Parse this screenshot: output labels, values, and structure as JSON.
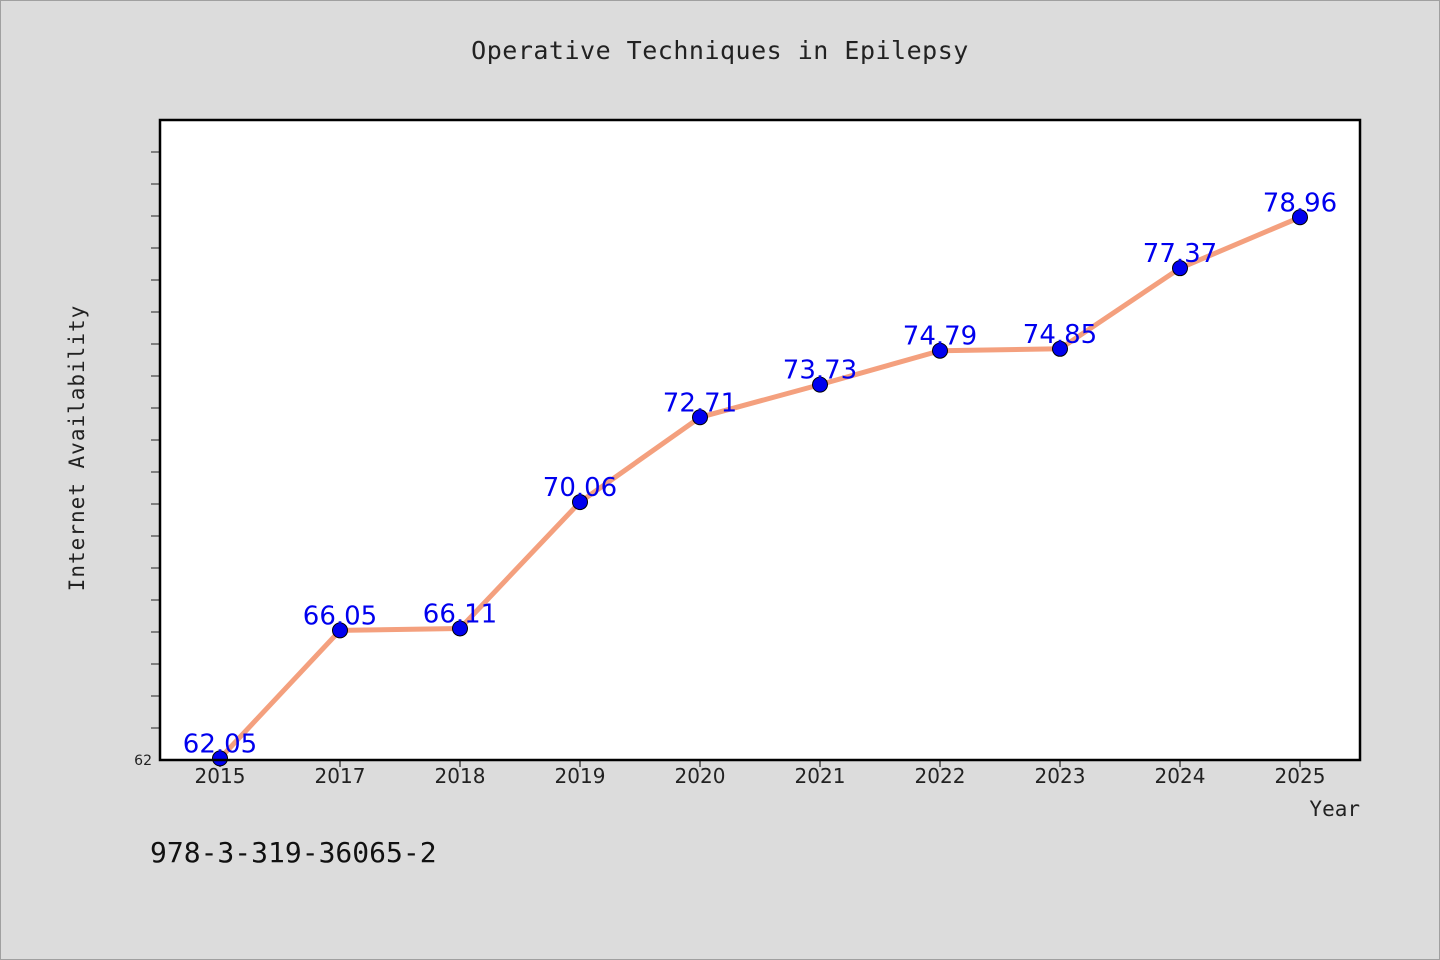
{
  "chart_data": {
    "type": "line",
    "title": "Operative Techniques in Epilepsy",
    "xlabel": "Year",
    "ylabel": "Internet Availability",
    "categories": [
      "2015",
      "2017",
      "2018",
      "2019",
      "2020",
      "2021",
      "2022",
      "2023",
      "2024",
      "2025"
    ],
    "series": [
      {
        "values": [
          62.05,
          66.05,
          66.11,
          70.06,
          72.71,
          73.73,
          74.79,
          74.85,
          77.37,
          78.96
        ],
        "labels": [
          "62.05",
          "66.05",
          "66.11",
          "70.06",
          "72.71",
          "73.73",
          "74.79",
          "74.85",
          "77.37",
          "78.96"
        ]
      }
    ],
    "ylim": [
      62,
      82
    ],
    "y_tick_labels": [
      {
        "value": 62,
        "label": "62"
      }
    ],
    "y_minor_ticks": [
      63,
      64,
      65,
      66,
      67,
      68,
      69,
      70,
      71,
      72,
      73,
      74,
      75,
      76,
      77,
      78,
      79,
      80,
      81
    ],
    "grid": false,
    "legend": "none",
    "colors": {
      "line": "#f4a07e",
      "marker": "#0000ee",
      "label": "#0000ee",
      "background": "#dcdcdc",
      "plot_background": "#ffffff"
    }
  },
  "footer_text": "978-3-319-36065-2"
}
